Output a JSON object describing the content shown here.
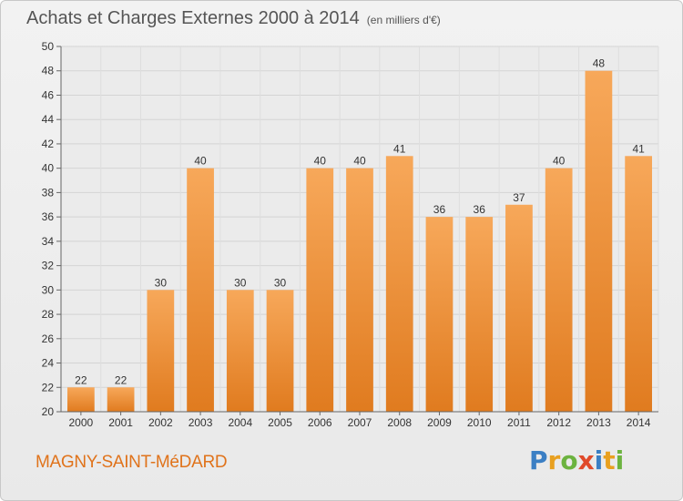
{
  "title": "Achats et Charges Externes 2000 à 2014",
  "unit": "(en milliers d'€)",
  "commune": "MAGNY-SAINT-MéDARD",
  "logo": {
    "text": "Proxiti",
    "letters": [
      {
        "ch": "P",
        "color": "#3b7fc4"
      },
      {
        "ch": "r",
        "color": "#e8a020"
      },
      {
        "ch": "o",
        "color": "#6cb33f"
      },
      {
        "ch": "x",
        "color": "#e04a2a"
      },
      {
        "ch": "i",
        "color": "#3b7fc4"
      },
      {
        "ch": "t",
        "color": "#e8a020"
      },
      {
        "ch": "i",
        "color": "#6cb33f"
      }
    ]
  },
  "chart_data": {
    "type": "bar",
    "categories": [
      "2000",
      "2001",
      "2002",
      "2003",
      "2004",
      "2005",
      "2006",
      "2007",
      "2008",
      "2009",
      "2010",
      "2011",
      "2012",
      "2013",
      "2014"
    ],
    "values": [
      22,
      22,
      30,
      40,
      30,
      30,
      40,
      40,
      41,
      36,
      36,
      37,
      40,
      48,
      41
    ],
    "title": "Achats et Charges Externes 2000 à 2014",
    "xlabel": "",
    "ylabel": "",
    "ylim": [
      20,
      50
    ],
    "yticks": [
      20,
      22,
      24,
      26,
      28,
      30,
      32,
      34,
      36,
      38,
      40,
      42,
      44,
      46,
      48,
      50
    ],
    "grid": "horizontal",
    "bar_color_top": "#f7a85a",
    "bar_color_bottom": "#e07b1f"
  }
}
